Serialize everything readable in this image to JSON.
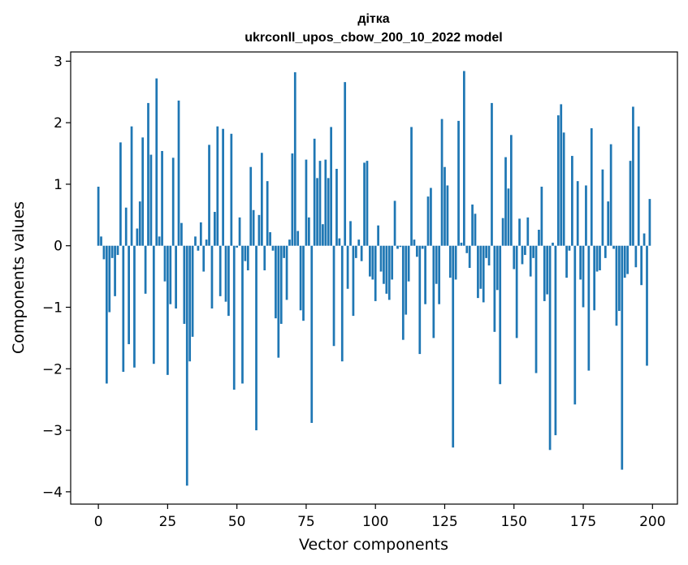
{
  "chart_data": {
    "type": "bar",
    "title": "дітка",
    "subtitle": "ukrconll_upos_cbow_200_10_2022 model",
    "xlabel": "Vector components",
    "ylabel": "Components values",
    "xlim": [
      -10,
      209
    ],
    "ylim": [
      -4.2,
      3.15
    ],
    "xticks": [
      0,
      25,
      50,
      75,
      100,
      125,
      150,
      175,
      200
    ],
    "yticks": [
      -4,
      -3,
      -2,
      -1,
      0,
      1,
      2,
      3
    ],
    "ytick_labels": [
      "−4",
      "−3",
      "−2",
      "−1",
      "0",
      "1",
      "2",
      "3"
    ],
    "grid": false,
    "bar_color": "#1f77b4",
    "x": [
      0,
      1,
      2,
      3,
      4,
      5,
      6,
      7,
      8,
      9,
      10,
      11,
      12,
      13,
      14,
      15,
      16,
      17,
      18,
      19,
      20,
      21,
      22,
      23,
      24,
      25,
      26,
      27,
      28,
      29,
      30,
      31,
      32,
      33,
      34,
      35,
      36,
      37,
      38,
      39,
      40,
      41,
      42,
      43,
      44,
      45,
      46,
      47,
      48,
      49,
      50,
      51,
      52,
      53,
      54,
      55,
      56,
      57,
      58,
      59,
      60,
      61,
      62,
      63,
      64,
      65,
      66,
      67,
      68,
      69,
      70,
      71,
      72,
      73,
      74,
      75,
      76,
      77,
      78,
      79,
      80,
      81,
      82,
      83,
      84,
      85,
      86,
      87,
      88,
      89,
      90,
      91,
      92,
      93,
      94,
      95,
      96,
      97,
      98,
      99,
      100,
      101,
      102,
      103,
      104,
      105,
      106,
      107,
      108,
      109,
      110,
      111,
      112,
      113,
      114,
      115,
      116,
      117,
      118,
      119,
      120,
      121,
      122,
      123,
      124,
      125,
      126,
      127,
      128,
      129,
      130,
      131,
      132,
      133,
      134,
      135,
      136,
      137,
      138,
      139,
      140,
      141,
      142,
      143,
      144,
      145,
      146,
      147,
      148,
      149,
      150,
      151,
      152,
      153,
      154,
      155,
      156,
      157,
      158,
      159,
      160,
      161,
      162,
      163,
      164,
      165,
      166,
      167,
      168,
      169,
      170,
      171,
      172,
      173,
      174,
      175,
      176,
      177,
      178,
      179,
      180,
      181,
      182,
      183,
      184,
      185,
      186,
      187,
      188,
      189,
      190,
      191,
      192,
      193,
      194,
      195,
      196,
      197,
      198,
      199
    ],
    "values": [
      0.96,
      0.15,
      -0.22,
      -2.24,
      -1.08,
      -0.2,
      -0.82,
      -0.15,
      1.68,
      -2.05,
      0.62,
      -1.6,
      1.94,
      -1.98,
      0.28,
      0.72,
      1.76,
      -0.78,
      2.32,
      1.48,
      -1.92,
      2.72,
      0.15,
      1.54,
      -0.58,
      -2.1,
      -0.95,
      1.43,
      -1.02,
      2.36,
      0.37,
      -1.27,
      -3.9,
      -1.88,
      -1.48,
      0.15,
      -0.08,
      0.38,
      -0.42,
      0.1,
      1.64,
      -1.02,
      0.55,
      1.94,
      -0.82,
      1.9,
      -0.91,
      -1.14,
      1.82,
      -2.34,
      -0.03,
      0.46,
      -2.24,
      -0.25,
      -0.4,
      1.28,
      0.58,
      -3.0,
      0.5,
      1.51,
      -0.4,
      1.05,
      0.22,
      -0.08,
      -1.18,
      -1.82,
      -1.27,
      -0.2,
      -0.88,
      0.1,
      1.5,
      2.82,
      0.24,
      -1.05,
      -1.22,
      1.4,
      0.46,
      -2.88,
      1.74,
      1.1,
      1.38,
      0.35,
      1.4,
      1.1,
      1.93,
      -1.63,
      1.25,
      0.12,
      -1.88,
      2.66,
      -0.7,
      0.4,
      -1.14,
      -0.2,
      0.1,
      -0.25,
      1.35,
      1.38,
      -0.5,
      -0.55,
      -0.9,
      0.33,
      -0.42,
      -0.62,
      -0.78,
      -0.88,
      -0.55,
      0.73,
      -0.05,
      -0.02,
      -1.53,
      -1.12,
      -0.58,
      1.93,
      0.1,
      -0.18,
      -1.76,
      -0.05,
      -0.95,
      0.8,
      0.94,
      -1.5,
      -0.62,
      -0.95,
      2.06,
      1.28,
      0.98,
      -0.52,
      -3.28,
      -0.55,
      2.03,
      0.05,
      2.84,
      -0.12,
      -0.36,
      0.67,
      0.52,
      -0.85,
      -0.7,
      -0.92,
      -0.2,
      -0.32,
      2.32,
      -1.4,
      -0.72,
      -2.25,
      0.45,
      1.44,
      0.93,
      1.8,
      -0.38,
      -1.5,
      0.44,
      -0.3,
      -0.15,
      0.46,
      -0.5,
      -0.2,
      -2.07,
      0.26,
      0.96,
      -0.9,
      -0.79,
      -3.32,
      0.05,
      -3.08,
      2.12,
      2.3,
      1.84,
      -0.52,
      -0.08,
      1.46,
      -2.58,
      1.05,
      -0.55,
      -1.0,
      0.98,
      -2.03,
      1.91,
      -1.05,
      -0.42,
      -0.4,
      1.24,
      -0.2,
      0.72,
      1.65,
      -0.05,
      -1.3,
      -1.06,
      -3.64,
      -0.52,
      -0.46,
      1.38,
      2.26,
      -0.35,
      1.94,
      -0.64,
      0.2,
      -1.95,
      0.76
    ]
  }
}
